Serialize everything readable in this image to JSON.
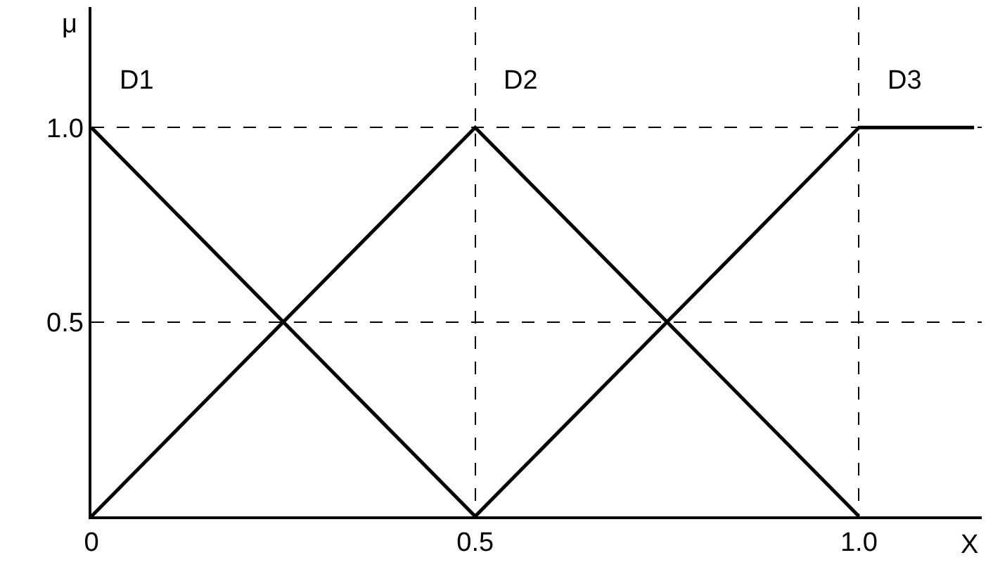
{
  "chart_data": {
    "type": "line",
    "xlabel": "X",
    "ylabel": "μ",
    "series": [
      {
        "name": "D1",
        "color": "#000000",
        "x": [
          0,
          0.5
        ],
        "values": [
          1,
          0
        ]
      },
      {
        "name": "D2",
        "color": "#000000",
        "x": [
          0,
          0.5,
          1
        ],
        "values": [
          0,
          1,
          0
        ]
      },
      {
        "name": "D3",
        "color": "#000000",
        "x": [
          0.5,
          1,
          1.15
        ],
        "values": [
          0,
          1,
          1
        ]
      }
    ],
    "xlim": [
      0,
      1.16
    ],
    "ylim": [
      0,
      1.31
    ],
    "xticks": [
      0,
      0.5,
      {
        "value": 1,
        "label": "1.0"
      }
    ],
    "yticks": [
      0.5,
      {
        "value": 1,
        "label": "1.0"
      }
    ],
    "grid": true,
    "line_style": "solid",
    "marker": "none",
    "legend": false
  }
}
